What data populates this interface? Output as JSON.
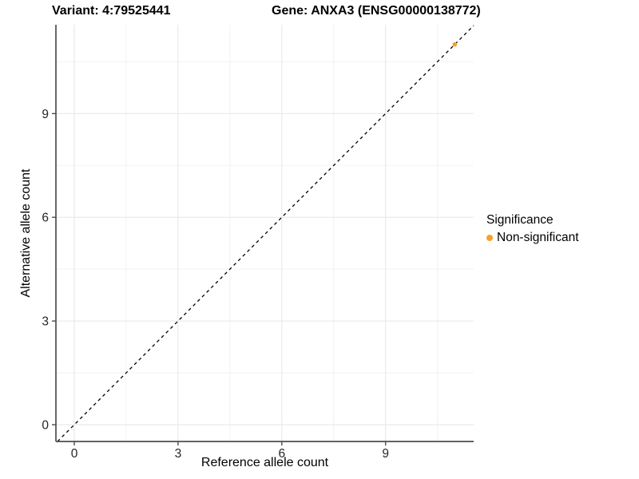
{
  "titles": {
    "variant": "Variant: 4:79525441",
    "gene": "Gene: ANXA3 (ENSG00000138772)"
  },
  "chart_data": {
    "type": "scatter",
    "title_left": "Variant: 4:79525441",
    "title_right": "Gene: ANXA3 (ENSG00000138772)",
    "xlabel": "Reference allele count",
    "ylabel": "Alternative allele count",
    "xlim": [
      -0.5,
      11.6
    ],
    "ylim": [
      -0.5,
      11.6
    ],
    "x_ticks": [
      0,
      3,
      6,
      9
    ],
    "y_ticks": [
      0,
      3,
      6,
      9
    ],
    "x_minor_gridlines": [
      1.5,
      4.5,
      7.5,
      10.5
    ],
    "y_minor_gridlines": [
      1.5,
      4.5,
      7.5,
      10.5
    ],
    "grid": true,
    "legend_position": "right",
    "identity_line": {
      "style": "dashed",
      "color": "#000000"
    },
    "series": [
      {
        "name": "Non-significant",
        "color": "#F9A12B",
        "points": [
          {
            "x": 11,
            "y": 11
          }
        ]
      }
    ],
    "legend": {
      "title": "Significance",
      "entries": [
        {
          "label": "Non-significant",
          "color": "#F9A12B"
        }
      ]
    }
  },
  "colors": {
    "background": "#ffffff",
    "axis_line": "#4d4d4d",
    "tick_text": "#262626",
    "grid_major": "#e6e6e6",
    "grid_minor": "#f2f2f2",
    "point": "#F9A12B"
  }
}
